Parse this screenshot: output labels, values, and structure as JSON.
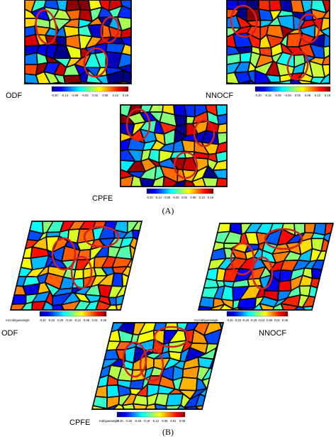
{
  "figure_a": {
    "caption": "(A)",
    "panels": [
      {
        "label": "ODF",
        "colorbar": {
          "ticks": [
            "-0.20",
            "-0.14",
            "-0.09",
            "-0.03",
            "0.02",
            "0.08",
            "0.13",
            "0.19"
          ]
        }
      },
      {
        "label": "NNOCF",
        "colorbar": {
          "ticks": [
            "-0.20",
            "-0.14",
            "-0.09",
            "-0.03",
            "0.02",
            "0.08",
            "0.13",
            "0.19"
          ]
        }
      },
      {
        "label": "CPFE",
        "colorbar": {
          "ticks": [
            "-0.20",
            "-0.14",
            "-0.09",
            "-0.03",
            "0.02",
            "0.08",
            "0.13",
            "0.19"
          ]
        }
      }
    ]
  },
  "figure_b": {
    "caption": "(B)",
    "panels": [
      {
        "label": "ODF",
        "colorbar": {
          "title": "rot.rodriguesangle",
          "ticks": [
            "-0.40",
            "-0.33",
            "-0.26",
            "-0.19",
            "-0.12",
            "-0.06",
            "0.01",
            "0.08"
          ]
        }
      },
      {
        "label": "NNOCF",
        "colorbar": {
          "title": "rot.rodriguesangle",
          "ticks": [
            "-0.40",
            "-0.33",
            "-0.26",
            "-0.19",
            "-0.12",
            "-0.06",
            "0.01",
            "0.08"
          ]
        }
      },
      {
        "label": "CPFE",
        "colorbar": {
          "title": "rodriguesangle",
          "ticks": [
            "-0.40",
            "-0.33",
            "-0.26",
            "-0.19",
            "-0.12",
            "-0.05",
            "0.01",
            "0.08"
          ]
        }
      }
    ]
  }
}
